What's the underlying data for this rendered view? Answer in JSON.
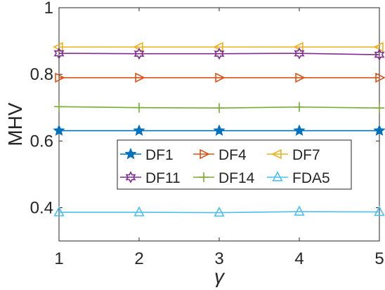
{
  "chart_data": {
    "type": "line",
    "title": "",
    "xlabel": "γ",
    "ylabel": "MHV",
    "x": [
      1,
      2,
      3,
      4,
      5
    ],
    "xticks": [
      "1",
      "2",
      "3",
      "4",
      "5"
    ],
    "yticks": [
      "0.4",
      "0.6",
      "0.8",
      "1"
    ],
    "xlim": [
      1,
      5
    ],
    "ylim": [
      0.3,
      1.0
    ],
    "grid": false,
    "legend_placement": "center",
    "series": [
      {
        "name": "DF1",
        "values": [
          0.631,
          0.631,
          0.631,
          0.631,
          0.631
        ],
        "color": "#0072BD",
        "marker": "star"
      },
      {
        "name": "DF4",
        "values": [
          0.79,
          0.79,
          0.79,
          0.79,
          0.79
        ],
        "color": "#D95319",
        "marker": "triangle-right"
      },
      {
        "name": "DF7",
        "values": [
          0.882,
          0.882,
          0.882,
          0.882,
          0.882
        ],
        "color": "#EDB120",
        "marker": "triangle-left"
      },
      {
        "name": "DF11",
        "values": [
          0.863,
          0.862,
          0.862,
          0.863,
          0.859
        ],
        "color": "#7E2F8E",
        "marker": "hexagram"
      },
      {
        "name": "DF14",
        "values": [
          0.703,
          0.7,
          0.699,
          0.702,
          0.699
        ],
        "color": "#77AC30",
        "marker": "plus"
      },
      {
        "name": "FDA5",
        "values": [
          0.386,
          0.386,
          0.385,
          0.388,
          0.387
        ],
        "color": "#4DBEEE",
        "marker": "triangle-up"
      }
    ]
  }
}
